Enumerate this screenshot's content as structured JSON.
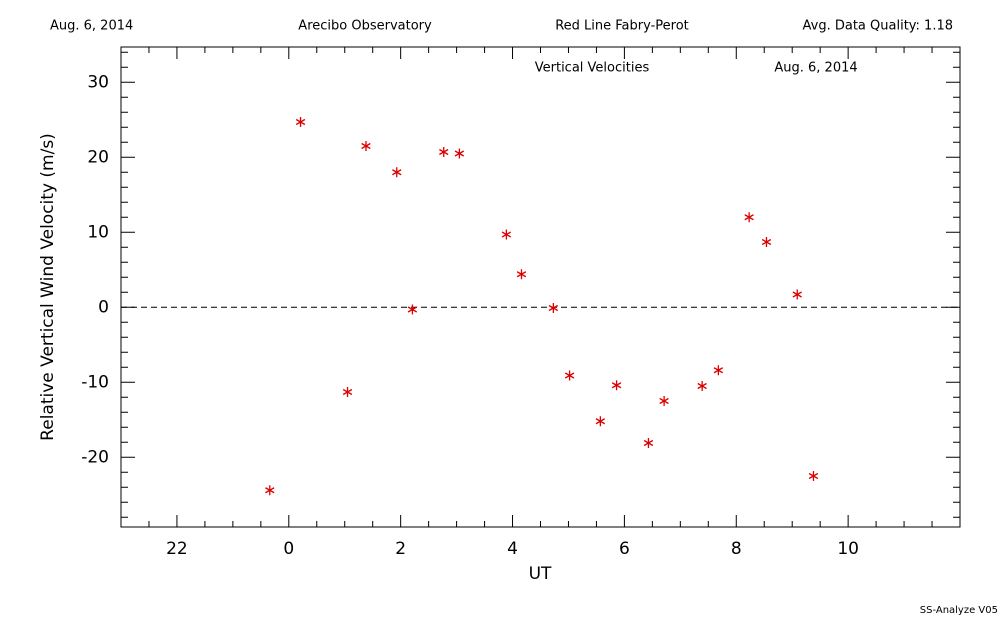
{
  "header": {
    "date": "Aug. 6, 2014",
    "site": "Arecibo Observatory",
    "instrument": "Red Line Fabry-Perot",
    "quality": "Avg. Data Quality: 1.18"
  },
  "footer": "SS-Analyze V05",
  "chart_data": {
    "type": "scatter",
    "title": "Vertical Velocities",
    "subtitle": "Aug. 6, 2014",
    "xlabel": "UT",
    "ylabel": "Relative Vertical Wind Velocity (m/s)",
    "color": "#dd0000",
    "hline": 0,
    "x": [
      -0.34,
      0.21,
      1.05,
      1.38,
      1.93,
      2.21,
      2.77,
      3.05,
      3.89,
      4.16,
      4.73,
      5.02,
      5.57,
      5.86,
      6.43,
      6.71,
      7.39,
      7.68,
      8.23,
      8.54,
      9.09,
      9.38
    ],
    "values": [
      -24.4,
      24.7,
      -11.3,
      21.5,
      18.0,
      -0.3,
      20.7,
      20.5,
      9.7,
      4.4,
      -0.1,
      -9.1,
      -15.2,
      -10.4,
      -18.1,
      -12.5,
      -10.5,
      -8.4,
      12.0,
      8.7,
      1.7,
      -22.5
    ],
    "xlim": [
      -3,
      12
    ],
    "ylim": [
      -29.3,
      34.7
    ],
    "xticks": [
      {
        "value": -2,
        "label": "22"
      },
      0,
      2,
      4,
      6,
      8,
      10
    ],
    "yticks": [
      -20,
      -10,
      0,
      10,
      20,
      30
    ],
    "xminorticks": [
      -2.5,
      -1.5,
      -1,
      -0.5,
      0.5,
      1,
      1.5,
      2.5,
      3,
      3.5,
      4.5,
      5,
      5.5,
      6.5,
      7,
      7.5,
      8.5,
      9,
      9.5,
      10.5,
      11,
      11.5
    ],
    "yminorticks": [
      -28,
      -26,
      -24,
      -22,
      -18,
      -16,
      -14,
      -12,
      -8,
      -6,
      -4,
      -2,
      2,
      4,
      6,
      8,
      12,
      14,
      16,
      18,
      22,
      24,
      26,
      28,
      32,
      34
    ]
  }
}
